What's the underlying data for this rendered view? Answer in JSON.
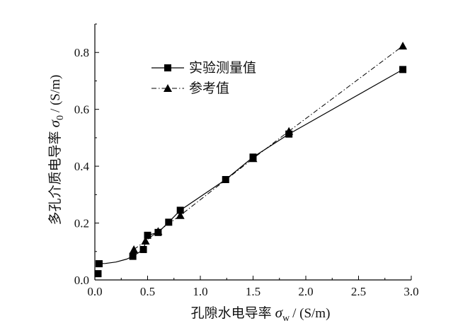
{
  "chart_data": {
    "type": "line",
    "xlabel": {
      "text": "孔隙水电导率",
      "symbol": "σ",
      "subscript": "w",
      "unit": "/ (S/m)"
    },
    "ylabel": {
      "text": "多孔介质电导率",
      "symbol": "σ",
      "subscript": "0",
      "unit": "/ (S/m)"
    },
    "xlim": [
      0.0,
      3.0
    ],
    "ylim": [
      0.0,
      0.9
    ],
    "xticks": [
      "0.0",
      "0.5",
      "1.0",
      "1.5",
      "2.0",
      "2.5",
      "3.0"
    ],
    "yticks": [
      "0.0",
      "0.2",
      "0.4",
      "0.6",
      "0.8"
    ],
    "grid": false,
    "legend_position": "top-center",
    "series": [
      {
        "name": "实验测量值",
        "marker": "square",
        "line": "solid",
        "color": "#000000",
        "x": [
          0.03,
          0.04,
          0.36,
          0.46,
          0.5,
          0.6,
          0.7,
          0.81,
          1.24,
          1.5,
          1.84,
          2.92
        ],
        "y": [
          0.022,
          0.057,
          0.083,
          0.107,
          0.157,
          0.167,
          0.203,
          0.245,
          0.353,
          0.432,
          0.513,
          0.74
        ],
        "line_x": [
          0.03,
          0.1,
          0.2,
          0.3,
          0.36,
          0.46,
          0.5,
          0.6,
          0.7,
          0.81,
          1.24,
          1.5,
          1.84,
          2.92
        ],
        "line_y": [
          0.057,
          0.058,
          0.063,
          0.073,
          0.083,
          0.107,
          0.157,
          0.167,
          0.203,
          0.245,
          0.353,
          0.432,
          0.513,
          0.74
        ]
      },
      {
        "name": "参考值",
        "marker": "triangle",
        "line": "dashdot",
        "color": "#000000",
        "x": [
          0.37,
          0.48,
          0.6,
          0.81,
          1.5,
          1.84,
          2.92
        ],
        "y": [
          0.107,
          0.137,
          0.171,
          0.227,
          0.427,
          0.523,
          0.823
        ]
      }
    ]
  }
}
